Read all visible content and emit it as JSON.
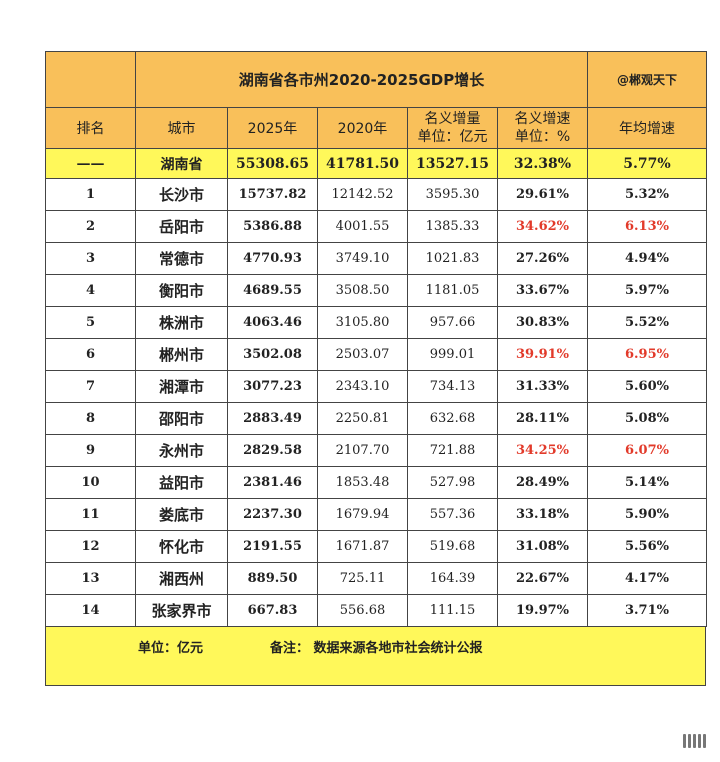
{
  "title": "湖南省各市州2020-2025GDP增长",
  "credit": "@郴观天下",
  "headers": {
    "rank": "排名",
    "city": "城市",
    "y2025": "2025年",
    "y2020": "2020年",
    "nominal_increase_line1": "名义增量",
    "nominal_increase_line2": "单位：亿元",
    "nominal_rate_line1": "名义增速",
    "nominal_rate_line2": "单位：%",
    "annual_rate": "年均增速"
  },
  "total": {
    "rank": "——",
    "city": "湖南省",
    "y2025": "55308.65",
    "y2020": "41781.50",
    "increase": "13527.15",
    "rate": "32.38%",
    "annual": "5.77%"
  },
  "rows": [
    {
      "rank": "1",
      "city": "长沙市",
      "y2025": "15737.82",
      "y2020": "12142.52",
      "increase": "3595.30",
      "rate": "29.61%",
      "annual": "5.32%",
      "highlight": false
    },
    {
      "rank": "2",
      "city": "岳阳市",
      "y2025": "5386.88",
      "y2020": "4001.55",
      "increase": "1385.33",
      "rate": "34.62%",
      "annual": "6.13%",
      "highlight": true
    },
    {
      "rank": "3",
      "city": "常德市",
      "y2025": "4770.93",
      "y2020": "3749.10",
      "increase": "1021.83",
      "rate": "27.26%",
      "annual": "4.94%",
      "highlight": false
    },
    {
      "rank": "4",
      "city": "衡阳市",
      "y2025": "4689.55",
      "y2020": "3508.50",
      "increase": "1181.05",
      "rate": "33.67%",
      "annual": "5.97%",
      "highlight": false
    },
    {
      "rank": "5",
      "city": "株洲市",
      "y2025": "4063.46",
      "y2020": "3105.80",
      "increase": "957.66",
      "rate": "30.83%",
      "annual": "5.52%",
      "highlight": false
    },
    {
      "rank": "6",
      "city": "郴州市",
      "y2025": "3502.08",
      "y2020": "2503.07",
      "increase": "999.01",
      "rate": "39.91%",
      "annual": "6.95%",
      "highlight": true
    },
    {
      "rank": "7",
      "city": "湘潭市",
      "y2025": "3077.23",
      "y2020": "2343.10",
      "increase": "734.13",
      "rate": "31.33%",
      "annual": "5.60%",
      "highlight": false
    },
    {
      "rank": "8",
      "city": "邵阳市",
      "y2025": "2883.49",
      "y2020": "2250.81",
      "increase": "632.68",
      "rate": "28.11%",
      "annual": "5.08%",
      "highlight": false
    },
    {
      "rank": "9",
      "city": "永州市",
      "y2025": "2829.58",
      "y2020": "2107.70",
      "increase": "721.88",
      "rate": "34.25%",
      "annual": "6.07%",
      "highlight": true
    },
    {
      "rank": "10",
      "city": "益阳市",
      "y2025": "2381.46",
      "y2020": "1853.48",
      "increase": "527.98",
      "rate": "28.49%",
      "annual": "5.14%",
      "highlight": false
    },
    {
      "rank": "11",
      "city": "娄底市",
      "y2025": "2237.30",
      "y2020": "1679.94",
      "increase": "557.36",
      "rate": "33.18%",
      "annual": "5.90%",
      "highlight": false
    },
    {
      "rank": "12",
      "city": "怀化市",
      "y2025": "2191.55",
      "y2020": "1671.87",
      "increase": "519.68",
      "rate": "31.08%",
      "annual": "5.56%",
      "highlight": false
    },
    {
      "rank": "13",
      "city": "湘西州",
      "y2025": "889.50",
      "y2020": "725.11",
      "increase": "164.39",
      "rate": "22.67%",
      "annual": "4.17%",
      "highlight": false
    },
    {
      "rank": "14",
      "city": "张家界市",
      "y2025": "667.83",
      "y2020": "556.68",
      "increase": "111.15",
      "rate": "19.97%",
      "annual": "3.71%",
      "highlight": false
    }
  ],
  "footer": {
    "unit": "单位：亿元",
    "note": "备注：  数据来源各地市社会统计公报"
  },
  "colors": {
    "header_bg": "#f9c05a",
    "highlight_bg": "#fff85a",
    "emphasis_text": "#e23a2a"
  }
}
